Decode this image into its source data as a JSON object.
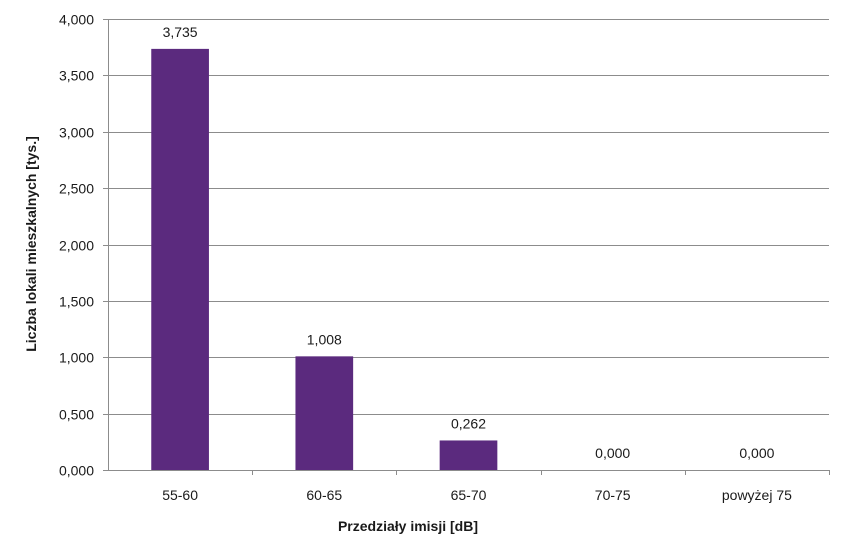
{
  "chart_data": {
    "type": "bar",
    "title": "",
    "xlabel": "Przedziały  imisji [dB]",
    "ylabel": "Liczba lokali mieszkalnych [tys.]",
    "categories": [
      "55-60",
      "60-65",
      "65-70",
      "70-75",
      "powyżej 75"
    ],
    "values": [
      3.735,
      1.008,
      0.262,
      0.0,
      0.0
    ],
    "value_labels": [
      "3,735",
      "1,008",
      "0,262",
      "0,000",
      "0,000"
    ],
    "ylim": [
      0,
      4
    ],
    "yticks": [
      0,
      0.5,
      1,
      1.5,
      2,
      2.5,
      3,
      3.5,
      4
    ],
    "ytick_labels": [
      "0,000",
      "0,500",
      "1,000",
      "1,500",
      "2,000",
      "2,500",
      "3,000",
      "3,500",
      "4,000"
    ],
    "grid": true,
    "legend": "none",
    "colors": {
      "bar": "#5b2a7e",
      "grid": "#8c8c8c",
      "axis": "#8c8c8c"
    }
  }
}
